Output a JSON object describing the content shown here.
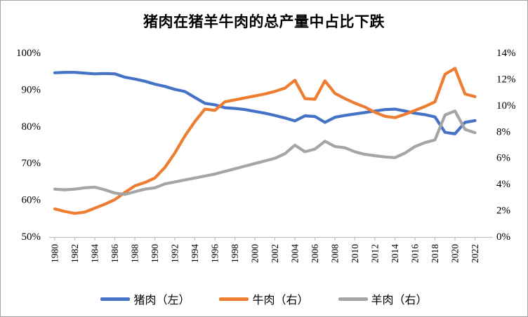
{
  "chart_data": {
    "type": "line",
    "title": "猪肉在猪羊牛肉的总产量中占比下跌",
    "x": [
      1980,
      1981,
      1982,
      1983,
      1984,
      1985,
      1986,
      1987,
      1988,
      1989,
      1990,
      1991,
      1992,
      1993,
      1994,
      1995,
      1996,
      1997,
      1998,
      1999,
      2000,
      2001,
      2002,
      2003,
      2004,
      2005,
      2006,
      2007,
      2008,
      2009,
      2010,
      2011,
      2012,
      2013,
      2014,
      2015,
      2016,
      2017,
      2018,
      2019,
      2020,
      2021,
      2022
    ],
    "x_tick_labels": [
      "1980",
      "1982",
      "1984",
      "1986",
      "1988",
      "1990",
      "1992",
      "1994",
      "1996",
      "1998",
      "2000",
      "2002",
      "2004",
      "2006",
      "2008",
      "2010",
      "2012",
      "2014",
      "2016",
      "2018",
      "2020",
      "2022"
    ],
    "series": [
      {
        "name": "猪肉（左）",
        "axis": "left",
        "color": "#4472C4",
        "values": [
          94.7,
          94.8,
          94.8,
          94.6,
          94.4,
          94.5,
          94.4,
          93.5,
          93.0,
          92.4,
          91.6,
          91.0,
          90.2,
          89.6,
          88.0,
          86.4,
          86.0,
          85.2,
          85.0,
          84.7,
          84.2,
          83.7,
          83.1,
          82.4,
          81.6,
          83.0,
          82.8,
          81.2,
          82.6,
          83.1,
          83.5,
          83.9,
          84.3,
          84.7,
          84.8,
          84.3,
          83.7,
          83.3,
          82.7,
          78.5,
          78.1,
          81.2,
          81.7
        ]
      },
      {
        "name": "牛肉（右）",
        "axis": "right",
        "color": "#ED7D31",
        "values": [
          2.15,
          1.95,
          1.8,
          1.9,
          2.2,
          2.5,
          2.85,
          3.4,
          3.9,
          4.15,
          4.5,
          5.3,
          6.4,
          7.7,
          8.8,
          9.75,
          9.65,
          10.3,
          10.45,
          10.6,
          10.75,
          10.9,
          11.1,
          11.35,
          11.95,
          10.55,
          10.5,
          11.9,
          10.95,
          10.55,
          10.2,
          9.9,
          9.5,
          9.2,
          9.1,
          9.35,
          9.65,
          9.95,
          10.3,
          12.4,
          12.85,
          10.9,
          10.7
        ]
      },
      {
        "name": "羊肉（右）",
        "axis": "right",
        "color": "#A5A5A5",
        "values": [
          3.65,
          3.6,
          3.65,
          3.75,
          3.8,
          3.6,
          3.35,
          3.25,
          3.45,
          3.65,
          3.75,
          4.05,
          4.2,
          4.35,
          4.5,
          4.65,
          4.8,
          5.0,
          5.2,
          5.4,
          5.6,
          5.8,
          6.0,
          6.35,
          7.0,
          6.5,
          6.7,
          7.3,
          6.9,
          6.8,
          6.5,
          6.3,
          6.2,
          6.1,
          6.05,
          6.4,
          6.9,
          7.2,
          7.4,
          9.3,
          9.6,
          8.2,
          7.95
        ]
      }
    ],
    "left_axis": {
      "min": 50,
      "max": 100,
      "tick_labels": [
        "100%",
        "90%",
        "80%",
        "70%",
        "60%",
        "50%"
      ]
    },
    "right_axis": {
      "min": 0,
      "max": 14,
      "tick_labels": [
        "14%",
        "12%",
        "10%",
        "8%",
        "6%",
        "4%",
        "2%",
        "0%"
      ]
    },
    "grid": false,
    "legend_position": "bottom",
    "axis_line_color": "#BFBFBF",
    "text_color": "#000000"
  }
}
